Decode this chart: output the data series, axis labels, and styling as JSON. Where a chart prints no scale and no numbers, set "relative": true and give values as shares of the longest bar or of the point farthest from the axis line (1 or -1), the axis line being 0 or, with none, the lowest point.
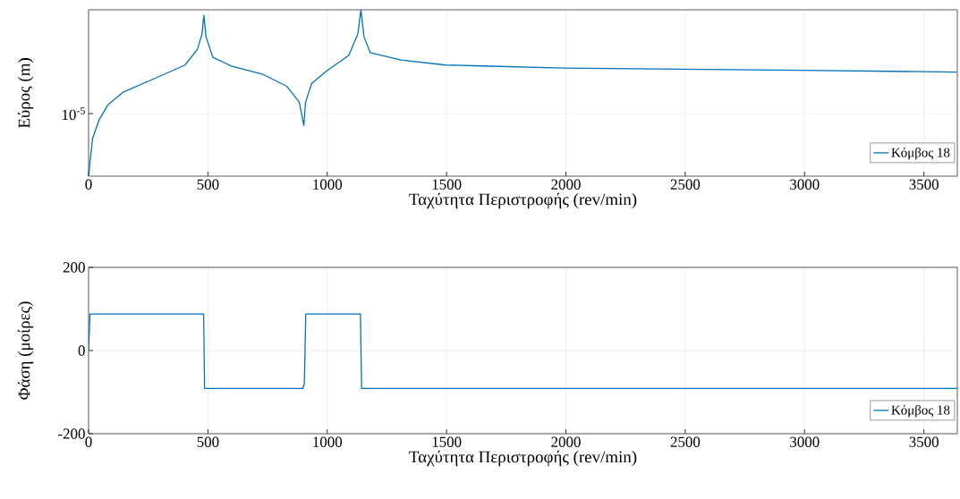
{
  "chart_data": [
    {
      "type": "line",
      "xlabel": "Ταχύτητα Περιστροφής (rev/min)",
      "ylabel": "Εύρος (m)",
      "grid": true,
      "legend": "bottom right",
      "relative": true,
      "xlim": [
        0,
        3640
      ],
      "xticks": [
        0,
        500,
        1000,
        1500,
        2000,
        2500,
        3000,
        3500
      ],
      "annotations": [
        "10$^{-5}$"
      ],
      "x": [
        1,
        4,
        17,
        43,
        81,
        146,
        275,
        404,
        456,
        475,
        483,
        492,
        521,
        598,
        727,
        831,
        883,
        902,
        909,
        935,
        999,
        1090,
        1128,
        1141,
        1154,
        1180,
        1309,
        1496,
        1615,
        1990,
        2985,
        3638
      ],
      "series": [
        {
          "name": "Κόμβος 18",
          "color": "#0072bd",
          "values": [
            0,
            0.057,
            0.227,
            0.335,
            0.429,
            0.506,
            0.586,
            0.668,
            0.763,
            0.853,
            0.967,
            0.838,
            0.714,
            0.662,
            0.614,
            0.54,
            0.444,
            0.305,
            0.444,
            0.558,
            0.634,
            0.726,
            0.853,
            1,
            0.838,
            0.743,
            0.698,
            0.668,
            0.664,
            0.65,
            0.636,
            0.626
          ]
        }
      ]
    },
    {
      "type": "line",
      "xlabel": "Ταχύτητα Περιστροφής (rev/min)",
      "ylabel": "Φάση (μοίρες)",
      "grid": true,
      "legend": "bottom right",
      "xlim": [
        0,
        3640
      ],
      "ylim": [
        -200,
        200
      ],
      "xticks": [
        0,
        500,
        1000,
        1500,
        2000,
        2500,
        3000,
        3500
      ],
      "yticks": [
        -200,
        0,
        200
      ],
      "x": [
        0,
        6,
        482,
        486,
        898,
        904,
        910,
        1139,
        1144,
        3640
      ],
      "series": [
        {
          "name": "Κόμβος 18",
          "color": "#0072bd",
          "values": [
            0,
            88,
            88,
            -91,
            -91,
            -80,
            88,
            88,
            -91,
            -91
          ]
        }
      ]
    }
  ]
}
